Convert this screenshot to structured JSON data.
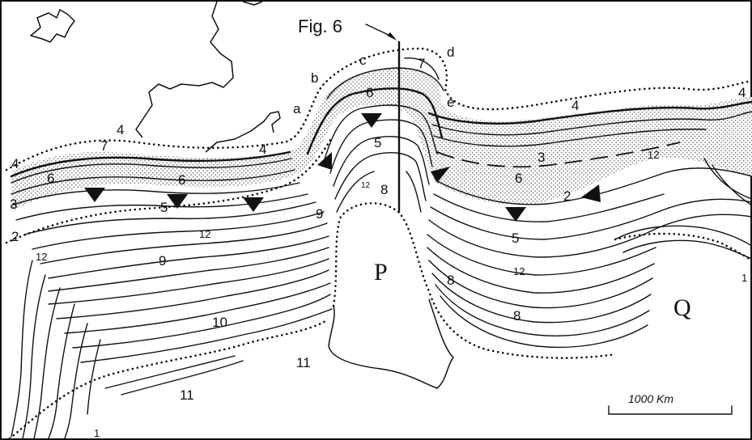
{
  "figure_reference": "Fig. 6",
  "basin_labels": {
    "p": "P",
    "q": "Q"
  },
  "zone_letters": [
    "a",
    "b",
    "c",
    "d",
    "e"
  ],
  "zone_numbers": [
    "1",
    "2",
    "3",
    "4",
    "5",
    "6",
    "7",
    "8",
    "9",
    "10",
    "11",
    "12"
  ],
  "scale_bar": {
    "label": "1000 Km"
  },
  "colors": {
    "ink": "#111111",
    "stipple": "#9a9a9a",
    "paper": "#ffffff"
  }
}
